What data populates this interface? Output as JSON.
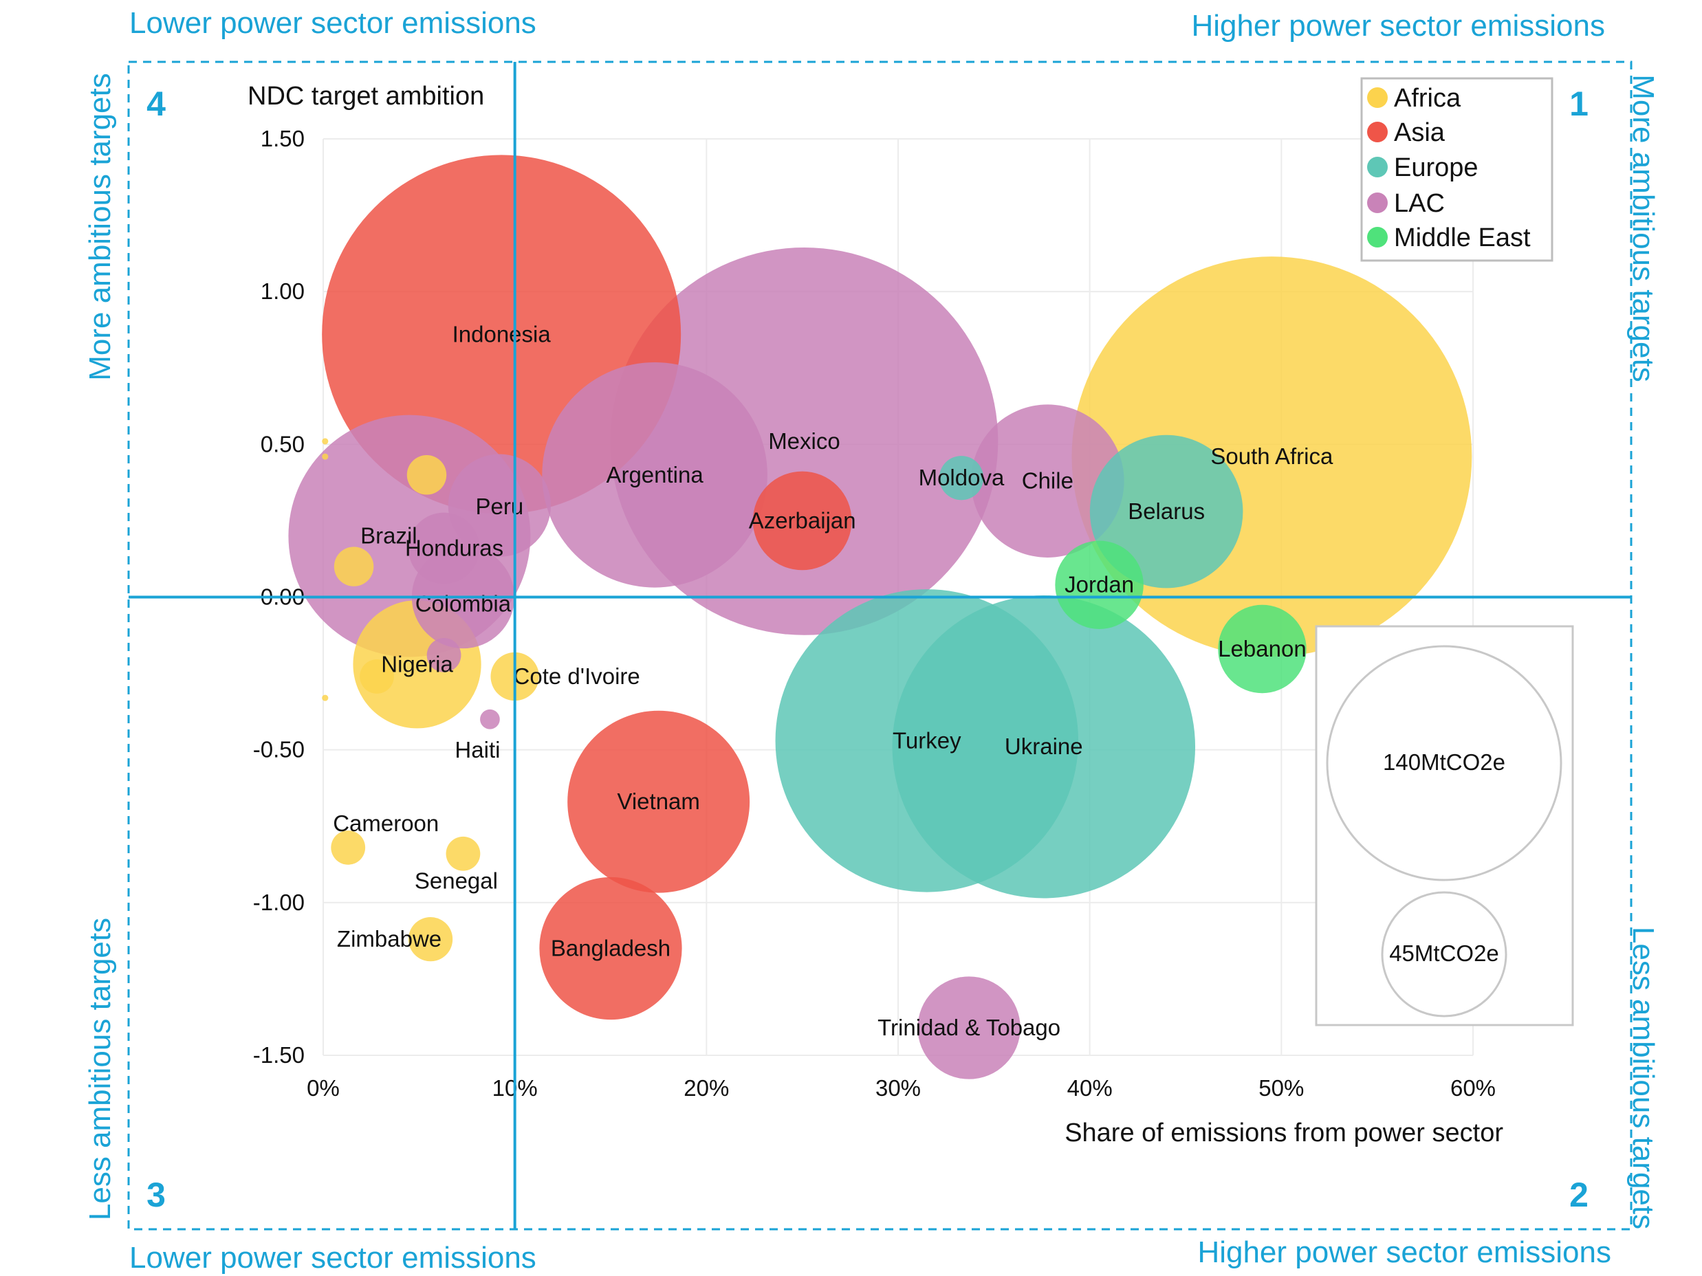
{
  "quadrant_labels": {
    "top_left": "Lower power sector emissions",
    "top_right": "Higher power sector emissions",
    "bottom_left": "Lower power sector emissions",
    "bottom_right": "Higher power sector emissions",
    "left_top": "More ambitious targets",
    "left_bottom": "Less ambitious targets",
    "right_top": "More ambitious targets",
    "right_bottom": "Less ambitious targets",
    "num_1": "1",
    "num_2": "2",
    "num_3": "3",
    "num_4": "4"
  },
  "colors": {
    "Africa": "#fcd34d",
    "Asia": "#ef5548",
    "Europe": "#5ec7b6",
    "LAC": "#c983b8",
    "Middle East": "#4fe27b",
    "quadrant": "#1aa3d6"
  },
  "chart_data": {
    "type": "scatter",
    "ylabel": "NDC target ambition",
    "xlabel": "Share of emissions from power sector",
    "xlim": [
      0,
      60
    ],
    "ylim": [
      -1.5,
      1.5
    ],
    "x_ticks": [
      "0%",
      "10%",
      "20%",
      "30%",
      "40%",
      "50%",
      "60%"
    ],
    "y_ticks": [
      "1.50",
      "1.00",
      "0.50",
      "0.00",
      "-0.50",
      "-1.00",
      "-1.50"
    ],
    "grid": true,
    "legend_position": "top-right",
    "legend": [
      "Africa",
      "Asia",
      "Europe",
      "LAC",
      "Middle East"
    ],
    "size_legend": [
      "140MtCO2e",
      "45MtCO2e"
    ],
    "quadrant_divider": {
      "x": 10,
      "y": 0
    },
    "points": [
      {
        "name": "Indonesia",
        "region": "Asia",
        "x": 9.3,
        "y": 0.86,
        "size": 330
      },
      {
        "name": "Mexico",
        "region": "LAC",
        "x": 25.1,
        "y": 0.51,
        "size": 385
      },
      {
        "name": "South Africa",
        "region": "Africa",
        "x": 49.5,
        "y": 0.46,
        "size": 410
      },
      {
        "name": "Argentina",
        "region": "LAC",
        "x": 17.3,
        "y": 0.4,
        "size": 130
      },
      {
        "name": "Azerbaijan",
        "region": "Asia",
        "x": 25.0,
        "y": 0.25,
        "size": 25
      },
      {
        "name": "Moldova",
        "region": "Europe",
        "x": 33.3,
        "y": 0.39,
        "size": 5
      },
      {
        "name": "Chile",
        "region": "LAC",
        "x": 37.8,
        "y": 0.38,
        "size": 60
      },
      {
        "name": "Belarus",
        "region": "Europe",
        "x": 44.0,
        "y": 0.28,
        "size": 60
      },
      {
        "name": "Brazil",
        "region": "LAC",
        "x": 4.5,
        "y": 0.2,
        "size": 150
      },
      {
        "name": "Peru",
        "region": "LAC",
        "x": 9.2,
        "y": 0.3,
        "size": 27
      },
      {
        "name": "Honduras",
        "region": "LAC",
        "x": 6.3,
        "y": 0.16,
        "size": 13
      },
      {
        "name": "Colombia",
        "region": "LAC",
        "x": 7.3,
        "y": 0.0,
        "size": 27
      },
      {
        "name": "Jordan",
        "region": "Middle East",
        "x": 40.5,
        "y": 0.04,
        "size": 20
      },
      {
        "name": "Lebanon",
        "region": "Middle East",
        "x": 49.0,
        "y": -0.17,
        "size": 20
      },
      {
        "name": "Nigeria",
        "region": "Africa",
        "x": 4.9,
        "y": -0.22,
        "size": 42
      },
      {
        "name": "Cote d'Ivoire",
        "region": "Africa",
        "x": 10.0,
        "y": -0.26,
        "size": 6
      },
      {
        "name": "Haiti",
        "region": "LAC",
        "x": 8.7,
        "y": -0.4,
        "size": 1
      },
      {
        "name": "Turkey",
        "region": "Europe",
        "x": 31.5,
        "y": -0.47,
        "size": 235
      },
      {
        "name": "Ukraine",
        "region": "Europe",
        "x": 37.6,
        "y": -0.49,
        "size": 235
      },
      {
        "name": "Vietnam",
        "region": "Asia",
        "x": 17.5,
        "y": -0.67,
        "size": 85
      },
      {
        "name": "Cameroon",
        "region": "Africa",
        "x": 1.3,
        "y": -0.82,
        "size": 3
      },
      {
        "name": "Senegal",
        "region": "Africa",
        "x": 7.3,
        "y": -0.84,
        "size": 3
      },
      {
        "name": "Zimbabwe",
        "region": "Africa",
        "x": 5.6,
        "y": -1.12,
        "size": 5
      },
      {
        "name": "Bangladesh",
        "region": "Asia",
        "x": 15.0,
        "y": -1.15,
        "size": 52
      },
      {
        "name": "Trinidad & Tobago",
        "region": "LAC",
        "x": 33.7,
        "y": -1.41,
        "size": 27
      },
      {
        "name": "",
        "region": "Africa",
        "x": 5.4,
        "y": 0.4,
        "size": 4
      },
      {
        "name": "",
        "region": "Africa",
        "x": 1.6,
        "y": 0.1,
        "size": 4
      },
      {
        "name": "",
        "region": "Africa",
        "x": 2.8,
        "y": -0.26,
        "size": 3
      },
      {
        "name": "",
        "region": "LAC",
        "x": 6.3,
        "y": -0.19,
        "size": 3
      },
      {
        "name": "",
        "region": "Africa",
        "x": 0.1,
        "y": 0.51,
        "size": 0.1
      },
      {
        "name": "",
        "region": "Africa",
        "x": 0.1,
        "y": 0.46,
        "size": 0.1
      },
      {
        "name": "",
        "region": "Africa",
        "x": 0.1,
        "y": -0.33,
        "size": 0.1
      }
    ]
  }
}
